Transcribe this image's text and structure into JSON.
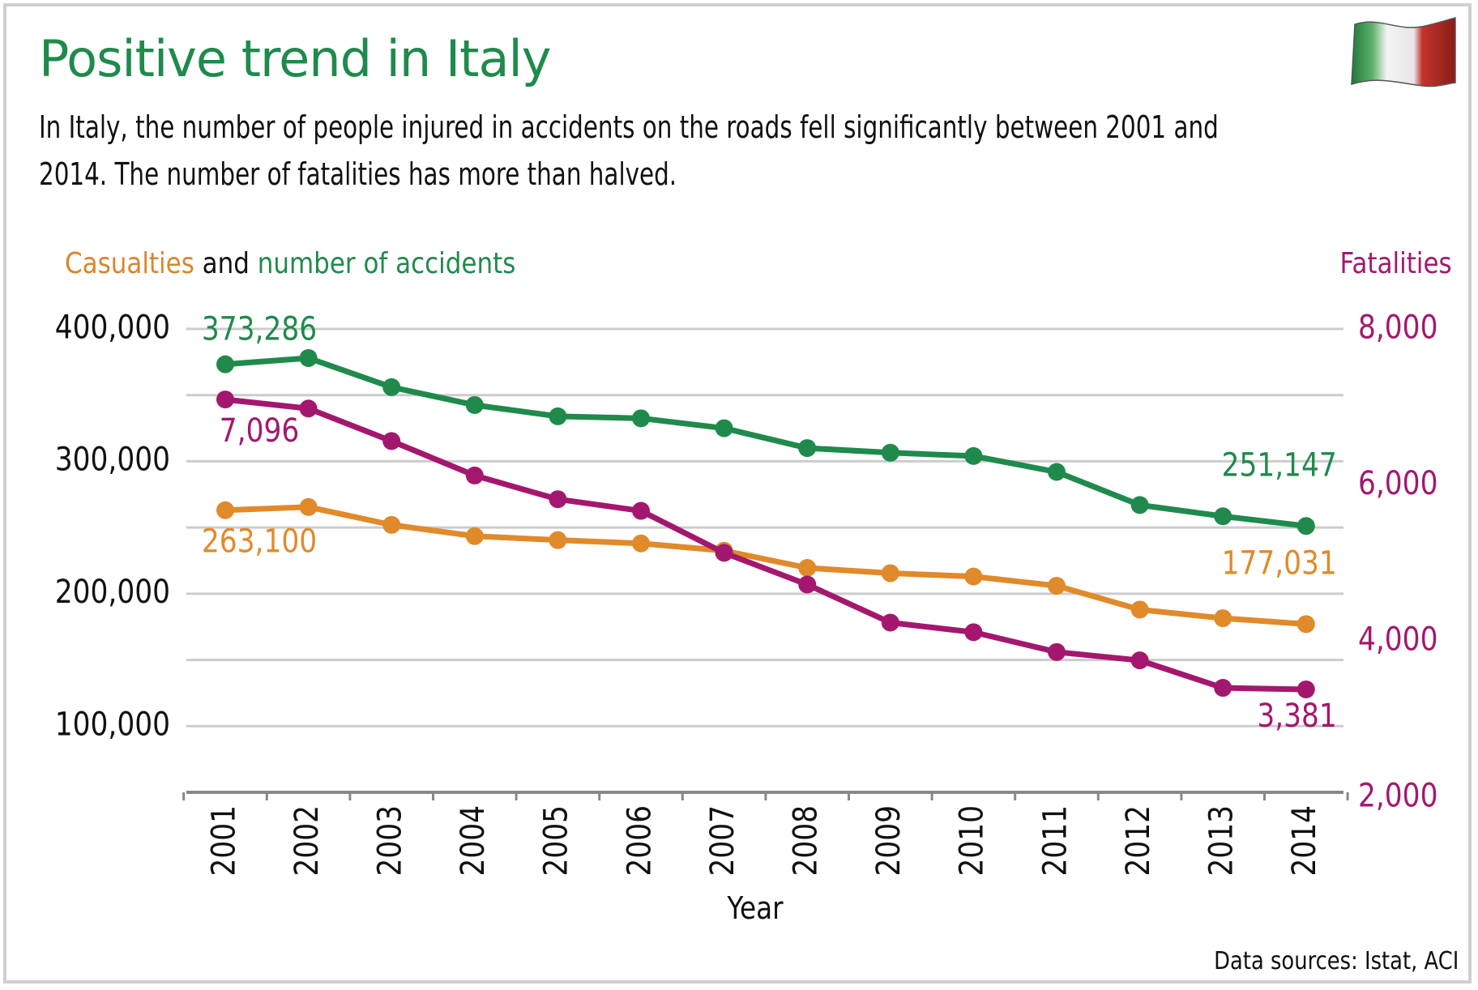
{
  "title": "Positive trend in Italy",
  "subtitle": "In Italy, the number of people injured in accidents on the roads fell significantly between 2001 and 2014. The number of fatalities has more than halved.",
  "legend_left": {
    "casualties": "Casualties",
    "and": " and ",
    "accidents": "number of accidents"
  },
  "legend_right": "Fatalities",
  "source": "Data sources: Istat, ACI",
  "colors": {
    "accidents": "#1f8a4c",
    "casualties": "#e08a2a",
    "fatalities": "#a3186e",
    "grid": "#cccccc"
  },
  "chart_data": {
    "type": "line",
    "xlabel": "Year",
    "categories": [
      "2001",
      "2002",
      "2003",
      "2004",
      "2005",
      "2006",
      "2007",
      "2008",
      "2009",
      "2010",
      "2011",
      "2012",
      "2013",
      "2014"
    ],
    "y_left": {
      "range": [
        50000,
        400000
      ],
      "ticks": [
        100000,
        200000,
        300000,
        400000
      ],
      "tick_labels": [
        "100,000",
        "200,000",
        "300,000",
        "400,000"
      ]
    },
    "y_right": {
      "range": [
        2000,
        8000
      ],
      "ticks": [
        2000,
        4000,
        6000,
        8000
      ],
      "tick_labels": [
        "2,000",
        "4,000",
        "6,000",
        "8,000"
      ]
    },
    "series": [
      {
        "name": "number of accidents",
        "axis": "left",
        "color": "#1f8a4c",
        "values": [
          373286,
          378000,
          356000,
          342500,
          334000,
          332500,
          325000,
          310000,
          306500,
          304000,
          292000,
          267000,
          258500,
          251147
        ],
        "labels": [
          {
            "index": 0,
            "text": "373,286",
            "pos": "above"
          },
          {
            "index": 13,
            "text": "251,147",
            "pos": "above"
          }
        ]
      },
      {
        "name": "Casualties",
        "axis": "left",
        "color": "#e08a2a",
        "values": [
          263100,
          265500,
          252000,
          243500,
          240500,
          238000,
          232500,
          219500,
          215500,
          213000,
          206000,
          188000,
          181500,
          177031
        ],
        "labels": [
          {
            "index": 0,
            "text": "263,100",
            "pos": "below"
          },
          {
            "index": 13,
            "text": "177,031",
            "pos": "above"
          }
        ]
      },
      {
        "name": "Fatalities",
        "axis": "right",
        "color": "#a3186e",
        "values": [
          7096,
          6980,
          6563,
          6122,
          5818,
          5669,
          5131,
          4725,
          4237,
          4114,
          3860,
          3753,
          3401,
          3381
        ],
        "labels": [
          {
            "index": 0,
            "text": "7,096",
            "pos": "below"
          },
          {
            "index": 13,
            "text": "3,381",
            "pos": "below"
          }
        ]
      }
    ]
  }
}
